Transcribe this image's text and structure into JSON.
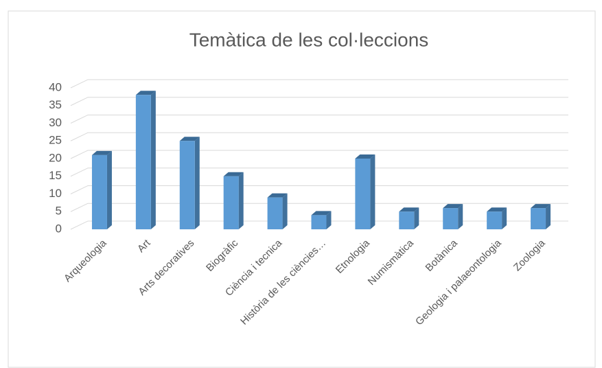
{
  "chart_data": {
    "type": "bar3d",
    "title": "Temàtica de les col·leccions",
    "categories": [
      "Arqueologia",
      "Art",
      "Arts decoratives",
      "Biogràfic",
      "Ciència i tecnica",
      "Història de les ciències…",
      "Etnologia",
      "Numismàtica",
      "Botànica",
      "Geologia i palaeontologia",
      "Zoologia"
    ],
    "values": [
      21,
      38,
      25,
      15,
      9,
      4,
      20,
      5,
      6,
      5,
      6
    ],
    "color": "#5b9bd5",
    "ylim": [
      0,
      40
    ],
    "yticks": [
      0,
      5,
      10,
      15,
      20,
      25,
      30,
      35,
      40
    ],
    "grid": true
  }
}
